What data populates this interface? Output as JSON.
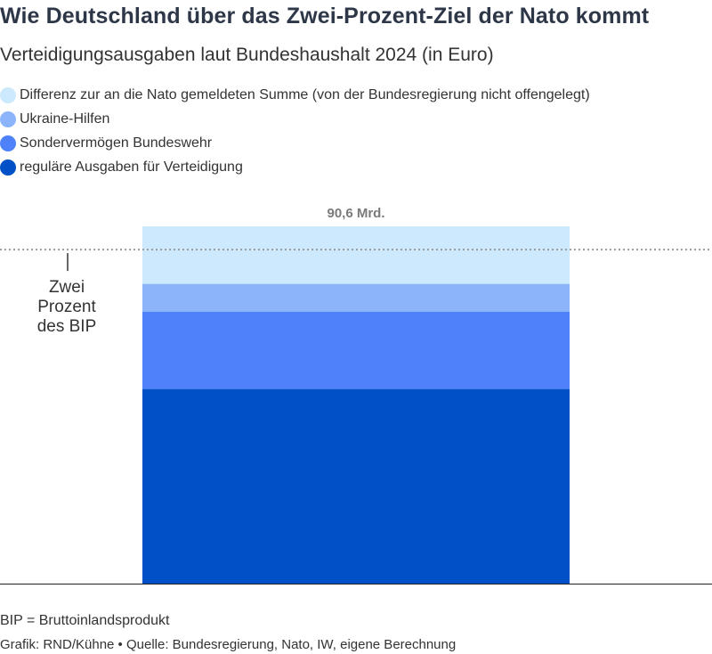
{
  "title": "Wie Deutschland über das Zwei-Prozent-Ziel der Nato kommt",
  "subtitle": "Verteidigungsausgaben laut Bundeshaushalt 2024 (in Euro)",
  "legend": [
    {
      "label": "Differenz zur an die Nato gemeldeten Summe (von der Bundesregierung nicht offengelegt)",
      "color": "#cde9fd"
    },
    {
      "label": "Ukraine-Hilfen",
      "color": "#8cb4fb"
    },
    {
      "label": "Sondervermögen Bundeswehr",
      "color": "#4f81fa"
    },
    {
      "label": "reguläre Ausgaben für Verteidigung",
      "color": "#0051c7"
    }
  ],
  "chart_data": {
    "type": "bar",
    "stacked": true,
    "categories": [
      ""
    ],
    "total_label": "90,6 Mrd.",
    "total_value": 90.6,
    "unit": "Mrd. Euro",
    "series": [
      {
        "name": "reguläre Ausgaben für Verteidigung",
        "values": [
          49.4
        ],
        "color": "#0051c7"
      },
      {
        "name": "Sondervermögen Bundeswehr",
        "values": [
          19.5
        ],
        "color": "#4f81fa"
      },
      {
        "name": "Ukraine-Hilfen",
        "values": [
          7.1
        ],
        "color": "#8cb4fb"
      },
      {
        "name": "Differenz zur an die Nato gemeldeten Summe (von der Bundesregierung nicht offengelegt)",
        "values": [
          14.6
        ],
        "color": "#cde9fd"
      }
    ],
    "reference_line": {
      "label": "Zwei Prozent des BIP",
      "label_lines": [
        "Zwei",
        "Prozent",
        "des BIP"
      ],
      "value": 84.7,
      "style": "dotted"
    },
    "ylim": [
      0,
      90.6
    ],
    "grid": false
  },
  "footer": {
    "note": "BIP = Bruttoinlandsprodukt",
    "credit": "Grafik: RND/Kühne • Quelle: Bundesregierung, Nato, IW, eigene Berechnung"
  }
}
